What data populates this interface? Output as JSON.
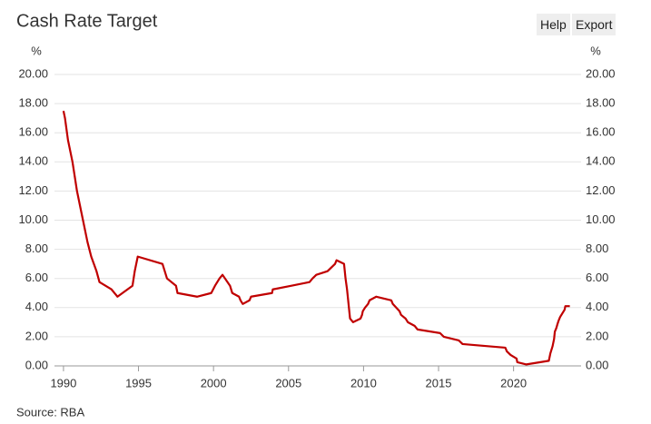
{
  "chart_data": {
    "type": "line",
    "title": "Cash Rate Target",
    "buttons": [
      "Help",
      "Export"
    ],
    "source": "Source: RBA",
    "y_label": "%",
    "y2_label": "%",
    "xlim": [
      1989.4,
      2024.5
    ],
    "xticks": [
      1990,
      1995,
      2000,
      2005,
      2010,
      2015,
      2020
    ],
    "ylim": [
      0,
      20
    ],
    "yticks": [
      {
        "value": 0,
        "label": "0.00"
      },
      {
        "value": 2,
        "label": "2.00"
      },
      {
        "value": 4,
        "label": "4.00"
      },
      {
        "value": 6,
        "label": "6.00"
      },
      {
        "value": 8,
        "label": "8.00"
      },
      {
        "value": 10,
        "label": "10.00"
      },
      {
        "value": 12,
        "label": "12.00"
      },
      {
        "value": 14,
        "label": "14.00"
      },
      {
        "value": 16,
        "label": "16.00"
      },
      {
        "value": 18,
        "label": "18.00"
      },
      {
        "value": 20,
        "label": "20.00"
      }
    ],
    "y2lim": [
      0,
      20
    ],
    "y2ticks": [
      {
        "value": 0,
        "label": "0.00"
      },
      {
        "value": 2,
        "label": "2.00"
      },
      {
        "value": 4,
        "label": "4.00"
      },
      {
        "value": 6,
        "label": "6.00"
      },
      {
        "value": 8,
        "label": "8.00"
      },
      {
        "value": 10,
        "label": "10.00"
      },
      {
        "value": 12,
        "label": "12.00"
      },
      {
        "value": 14,
        "label": "14.00"
      },
      {
        "value": 16,
        "label": "16.00"
      },
      {
        "value": 18,
        "label": "18.00"
      },
      {
        "value": 20,
        "label": "20.00"
      }
    ],
    "grid": true,
    "series": [
      {
        "color": "#c00000",
        "x": [
          1990.0,
          1990.1,
          1990.3,
          1990.6,
          1990.75,
          1990.9,
          1991.2,
          1991.4,
          1991.6,
          1991.85,
          1992.2,
          1992.4,
          1993.2,
          1993.6,
          1994.6,
          1994.75,
          1994.95,
          1996.6,
          1996.9,
          1997.5,
          1997.6,
          1998.9,
          1999.85,
          2000.1,
          2000.25,
          2000.4,
          2000.6,
          2001.1,
          2001.25,
          2001.7,
          2001.8,
          2001.95,
          2002.4,
          2002.5,
          2003.9,
          2003.95,
          2005.2,
          2006.4,
          2006.6,
          2006.85,
          2007.6,
          2007.85,
          2008.1,
          2008.2,
          2008.7,
          2008.8,
          2008.9,
          2009.0,
          2009.1,
          2009.3,
          2009.8,
          2009.9,
          2009.95,
          2010.1,
          2010.3,
          2010.4,
          2010.85,
          2011.85,
          2011.95,
          2012.4,
          2012.5,
          2012.8,
          2012.95,
          2013.4,
          2013.6,
          2015.1,
          2015.35,
          2016.35,
          2016.6,
          2019.45,
          2019.55,
          2019.8,
          2020.2,
          2020.25,
          2020.85,
          2022.35,
          2022.45,
          2022.6,
          2022.7,
          2022.75,
          2022.85,
          2022.92,
          2023.0,
          2023.1,
          2023.25,
          2023.4,
          2023.45,
          2023.75
        ],
        "values": [
          17.5,
          17.0,
          15.5,
          14.0,
          13.0,
          12.0,
          10.5,
          9.5,
          8.5,
          7.5,
          6.5,
          5.75,
          5.25,
          4.75,
          5.5,
          6.5,
          7.5,
          7.0,
          6.0,
          5.5,
          5.0,
          4.75,
          5.0,
          5.5,
          5.75,
          6.0,
          6.25,
          5.5,
          5.0,
          4.75,
          4.5,
          4.25,
          4.5,
          4.75,
          5.0,
          5.25,
          5.5,
          5.75,
          6.0,
          6.25,
          6.5,
          6.75,
          7.0,
          7.25,
          7.0,
          6.0,
          5.25,
          4.25,
          3.25,
          3.0,
          3.25,
          3.5,
          3.75,
          4.0,
          4.25,
          4.5,
          4.75,
          4.5,
          4.25,
          3.75,
          3.5,
          3.25,
          3.0,
          2.75,
          2.5,
          2.25,
          2.0,
          1.75,
          1.5,
          1.25,
          1.0,
          0.75,
          0.5,
          0.25,
          0.1,
          0.35,
          0.85,
          1.35,
          1.85,
          2.35,
          2.6,
          2.85,
          3.1,
          3.35,
          3.6,
          3.85,
          4.1,
          4.1
        ]
      }
    ]
  }
}
